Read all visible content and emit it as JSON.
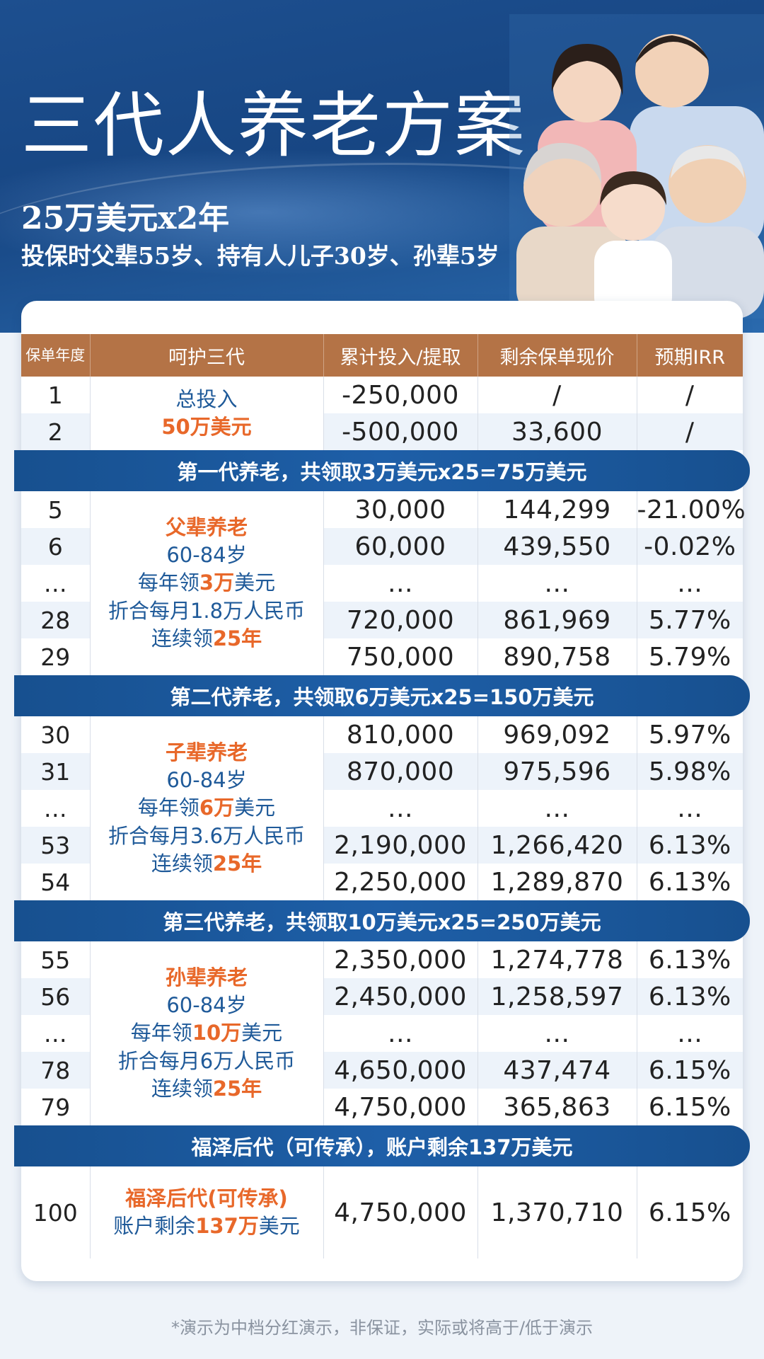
{
  "header": {
    "title": "三代人养老方案",
    "subtitle": "25万美元x2年",
    "description": "投保时父辈55岁、持有人儿子30岁、孙辈5岁"
  },
  "table": {
    "columns": [
      "保单年度",
      "呵护三代",
      "累计投入/提取",
      "剩余保单现价",
      "预期IRR"
    ],
    "sections": [
      {
        "banner": "",
        "desc": {
          "line1": "总投入",
          "line2": "50万美元"
        },
        "rows": [
          [
            "1",
            "-250,000",
            "/",
            "/"
          ],
          [
            "2",
            "-500,000",
            "33,600",
            "/"
          ]
        ]
      },
      {
        "banner": "第一代养老，共领取3万美元x25=75万美元",
        "desc": {
          "title": "父辈养老",
          "age": "60-84岁",
          "yearly_pre": "每年领",
          "yearly_amt": "3万",
          "yearly_post": "美元",
          "monthly": "折合每月1.8万人民币",
          "years_pre": "连续领",
          "years_amt": "25年"
        },
        "rows": [
          [
            "5",
            "30,000",
            "144,299",
            "-21.00%"
          ],
          [
            "6",
            "60,000",
            "439,550",
            "-0.02%"
          ],
          [
            "…",
            "…",
            "…",
            "…"
          ],
          [
            "28",
            "720,000",
            "861,969",
            "5.77%"
          ],
          [
            "29",
            "750,000",
            "890,758",
            "5.79%"
          ]
        ]
      },
      {
        "banner": "第二代养老，共领取6万美元x25=150万美元",
        "desc": {
          "title": "子辈养老",
          "age": "60-84岁",
          "yearly_pre": "每年领",
          "yearly_amt": "6万",
          "yearly_post": "美元",
          "monthly": "折合每月3.6万人民币",
          "years_pre": "连续领",
          "years_amt": "25年"
        },
        "rows": [
          [
            "30",
            "810,000",
            "969,092",
            "5.97%"
          ],
          [
            "31",
            "870,000",
            "975,596",
            "5.98%"
          ],
          [
            "…",
            "…",
            "…",
            "…"
          ],
          [
            "53",
            "2,190,000",
            "1,266,420",
            "6.13%"
          ],
          [
            "54",
            "2,250,000",
            "1,289,870",
            "6.13%"
          ]
        ]
      },
      {
        "banner": "第三代养老，共领取10万美元x25=250万美元",
        "desc": {
          "title": "孙辈养老",
          "age": "60-84岁",
          "yearly_pre": "每年领",
          "yearly_amt": "10万",
          "yearly_post": "美元",
          "monthly": "折合每月6万人民币",
          "years_pre": "连续领",
          "years_amt": "25年"
        },
        "rows": [
          [
            "55",
            "2,350,000",
            "1,274,778",
            "6.13%"
          ],
          [
            "56",
            "2,450,000",
            "1,258,597",
            "6.13%"
          ],
          [
            "…",
            "…",
            "…",
            "…"
          ],
          [
            "78",
            "4,650,000",
            "437,474",
            "6.15%"
          ],
          [
            "79",
            "4,750,000",
            "365,863",
            "6.15%"
          ]
        ]
      },
      {
        "banner": "福泽后代（可传承），账户剩余137万美元",
        "desc": {
          "title": "福泽后代(可传承)",
          "line_pre": "账户剩余",
          "line_amt": "137万",
          "line_post": "美元"
        },
        "rows": [
          [
            "100",
            "4,750,000",
            "1,370,710",
            "6.15%"
          ]
        ]
      }
    ]
  },
  "footnote": "*演示为中档分红演示，非保证，实际或将高于/低于演示"
}
